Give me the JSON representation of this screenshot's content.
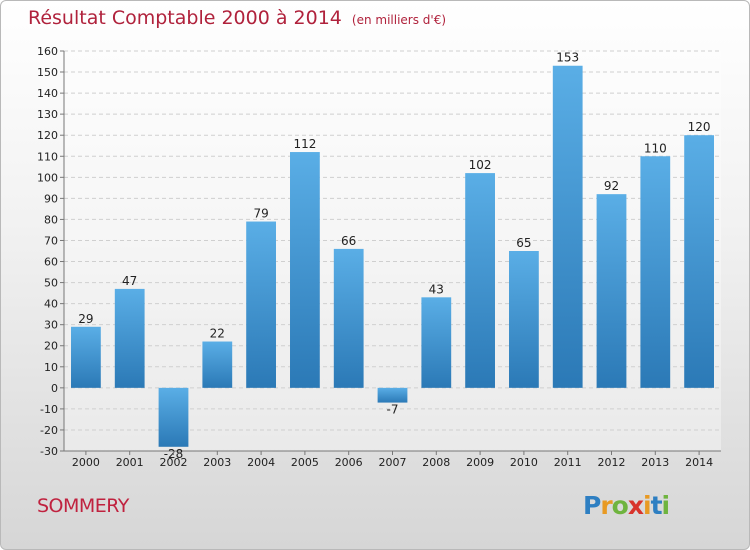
{
  "title": "Résultat Comptable 2000 à 2014",
  "subtitle": "(en milliers d'€)",
  "place": "SOMMERY",
  "logo": {
    "letters": [
      "P",
      "r",
      "o",
      "x",
      "i",
      "t",
      "i"
    ],
    "colors": [
      "#2e7fc2",
      "#e89a23",
      "#6fb43f",
      "#d8342c",
      "#e89a23",
      "#2e7fc2",
      "#6fb43f"
    ]
  },
  "colors": {
    "bar_top": "#5aaee6",
    "bar_bottom": "#2b79b6",
    "grid": "#cfcfcf",
    "accent": "#b0223c"
  },
  "chart_data": {
    "type": "bar",
    "title": "Résultat Comptable 2000 à 2014",
    "subtitle": "(en milliers d'€)",
    "categories": [
      "2000",
      "2001",
      "2002",
      "2003",
      "2004",
      "2005",
      "2006",
      "2007",
      "2008",
      "2009",
      "2010",
      "2011",
      "2012",
      "2013",
      "2014"
    ],
    "values": [
      29,
      47,
      -28,
      22,
      79,
      112,
      66,
      -7,
      43,
      102,
      65,
      153,
      92,
      110,
      120
    ],
    "data_labels": [
      "29",
      "47",
      "-28",
      "22",
      "79",
      "112",
      "66",
      "-7",
      "43",
      "102",
      "65",
      "153",
      "92",
      "110",
      "120"
    ],
    "ylim": [
      -30,
      160
    ],
    "yticks": [
      -30,
      -20,
      -10,
      0,
      10,
      20,
      30,
      40,
      50,
      60,
      70,
      80,
      90,
      100,
      110,
      120,
      130,
      140,
      150,
      160
    ],
    "grid": true,
    "xlabel": "",
    "ylabel": ""
  }
}
